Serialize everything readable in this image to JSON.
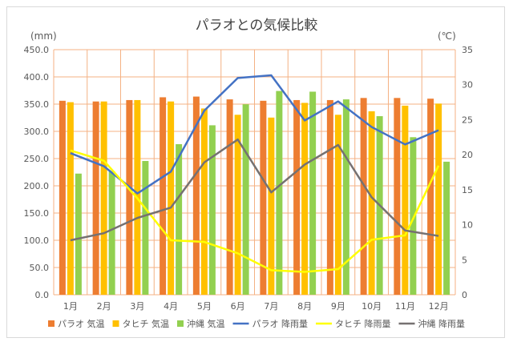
{
  "chart_data": {
    "type": "bar",
    "title": "パラオとの気候比較",
    "ylabel_left": "(mm)",
    "ylabel_right": "(℃)",
    "ylim_left": [
      0,
      450
    ],
    "ylim_right": [
      0,
      35
    ],
    "yticks_left": [
      "0.0",
      "50.0",
      "100.0",
      "150.0",
      "200.0",
      "250.0",
      "300.0",
      "350.0",
      "400.0",
      "450.0"
    ],
    "yticks_right": [
      "0",
      "5",
      "10",
      "15",
      "20",
      "25",
      "30",
      "35"
    ],
    "categories": [
      "1月",
      "2月",
      "3月",
      "4月",
      "5月",
      "6月",
      "7月",
      "8月",
      "9月",
      "10月",
      "11月",
      "12月"
    ],
    "grid": true,
    "legend_position": "bottom",
    "bar_series": [
      {
        "name": "パラオ 気温",
        "color": "#ed7d31",
        "axis": "right",
        "values": [
          27.7,
          27.6,
          27.8,
          28.2,
          28.3,
          27.9,
          27.7,
          27.8,
          27.8,
          28.1,
          28.1,
          28.0
        ]
      },
      {
        "name": "タヒチ 気温",
        "color": "#ffc000",
        "axis": "right",
        "values": [
          27.5,
          27.6,
          27.8,
          27.6,
          26.6,
          25.7,
          25.3,
          27.4,
          25.7,
          26.2,
          27.0,
          27.3
        ]
      },
      {
        "name": "沖縄 気温",
        "color": "#92d050",
        "axis": "right",
        "values": [
          17.3,
          17.6,
          19.1,
          21.5,
          24.2,
          27.2,
          29.1,
          29.0,
          27.9,
          25.5,
          22.5,
          19.0
        ]
      }
    ],
    "line_series": [
      {
        "name": "パラオ 降雨量",
        "color": "#4472c4",
        "axis": "left",
        "values": [
          260,
          236,
          186,
          226,
          338,
          398,
          403,
          320,
          355,
          308,
          276,
          302
        ]
      },
      {
        "name": "タヒチ 降雨量",
        "color": "#ffff00",
        "axis": "left",
        "values": [
          265,
          246,
          177,
          100,
          97,
          76,
          45,
          42,
          47,
          101,
          109,
          237
        ]
      },
      {
        "name": "沖縄 降雨量",
        "color": "#767171",
        "axis": "left",
        "values": [
          100,
          113,
          141,
          160,
          243,
          285,
          188,
          239,
          275,
          179,
          118,
          108
        ]
      }
    ]
  }
}
